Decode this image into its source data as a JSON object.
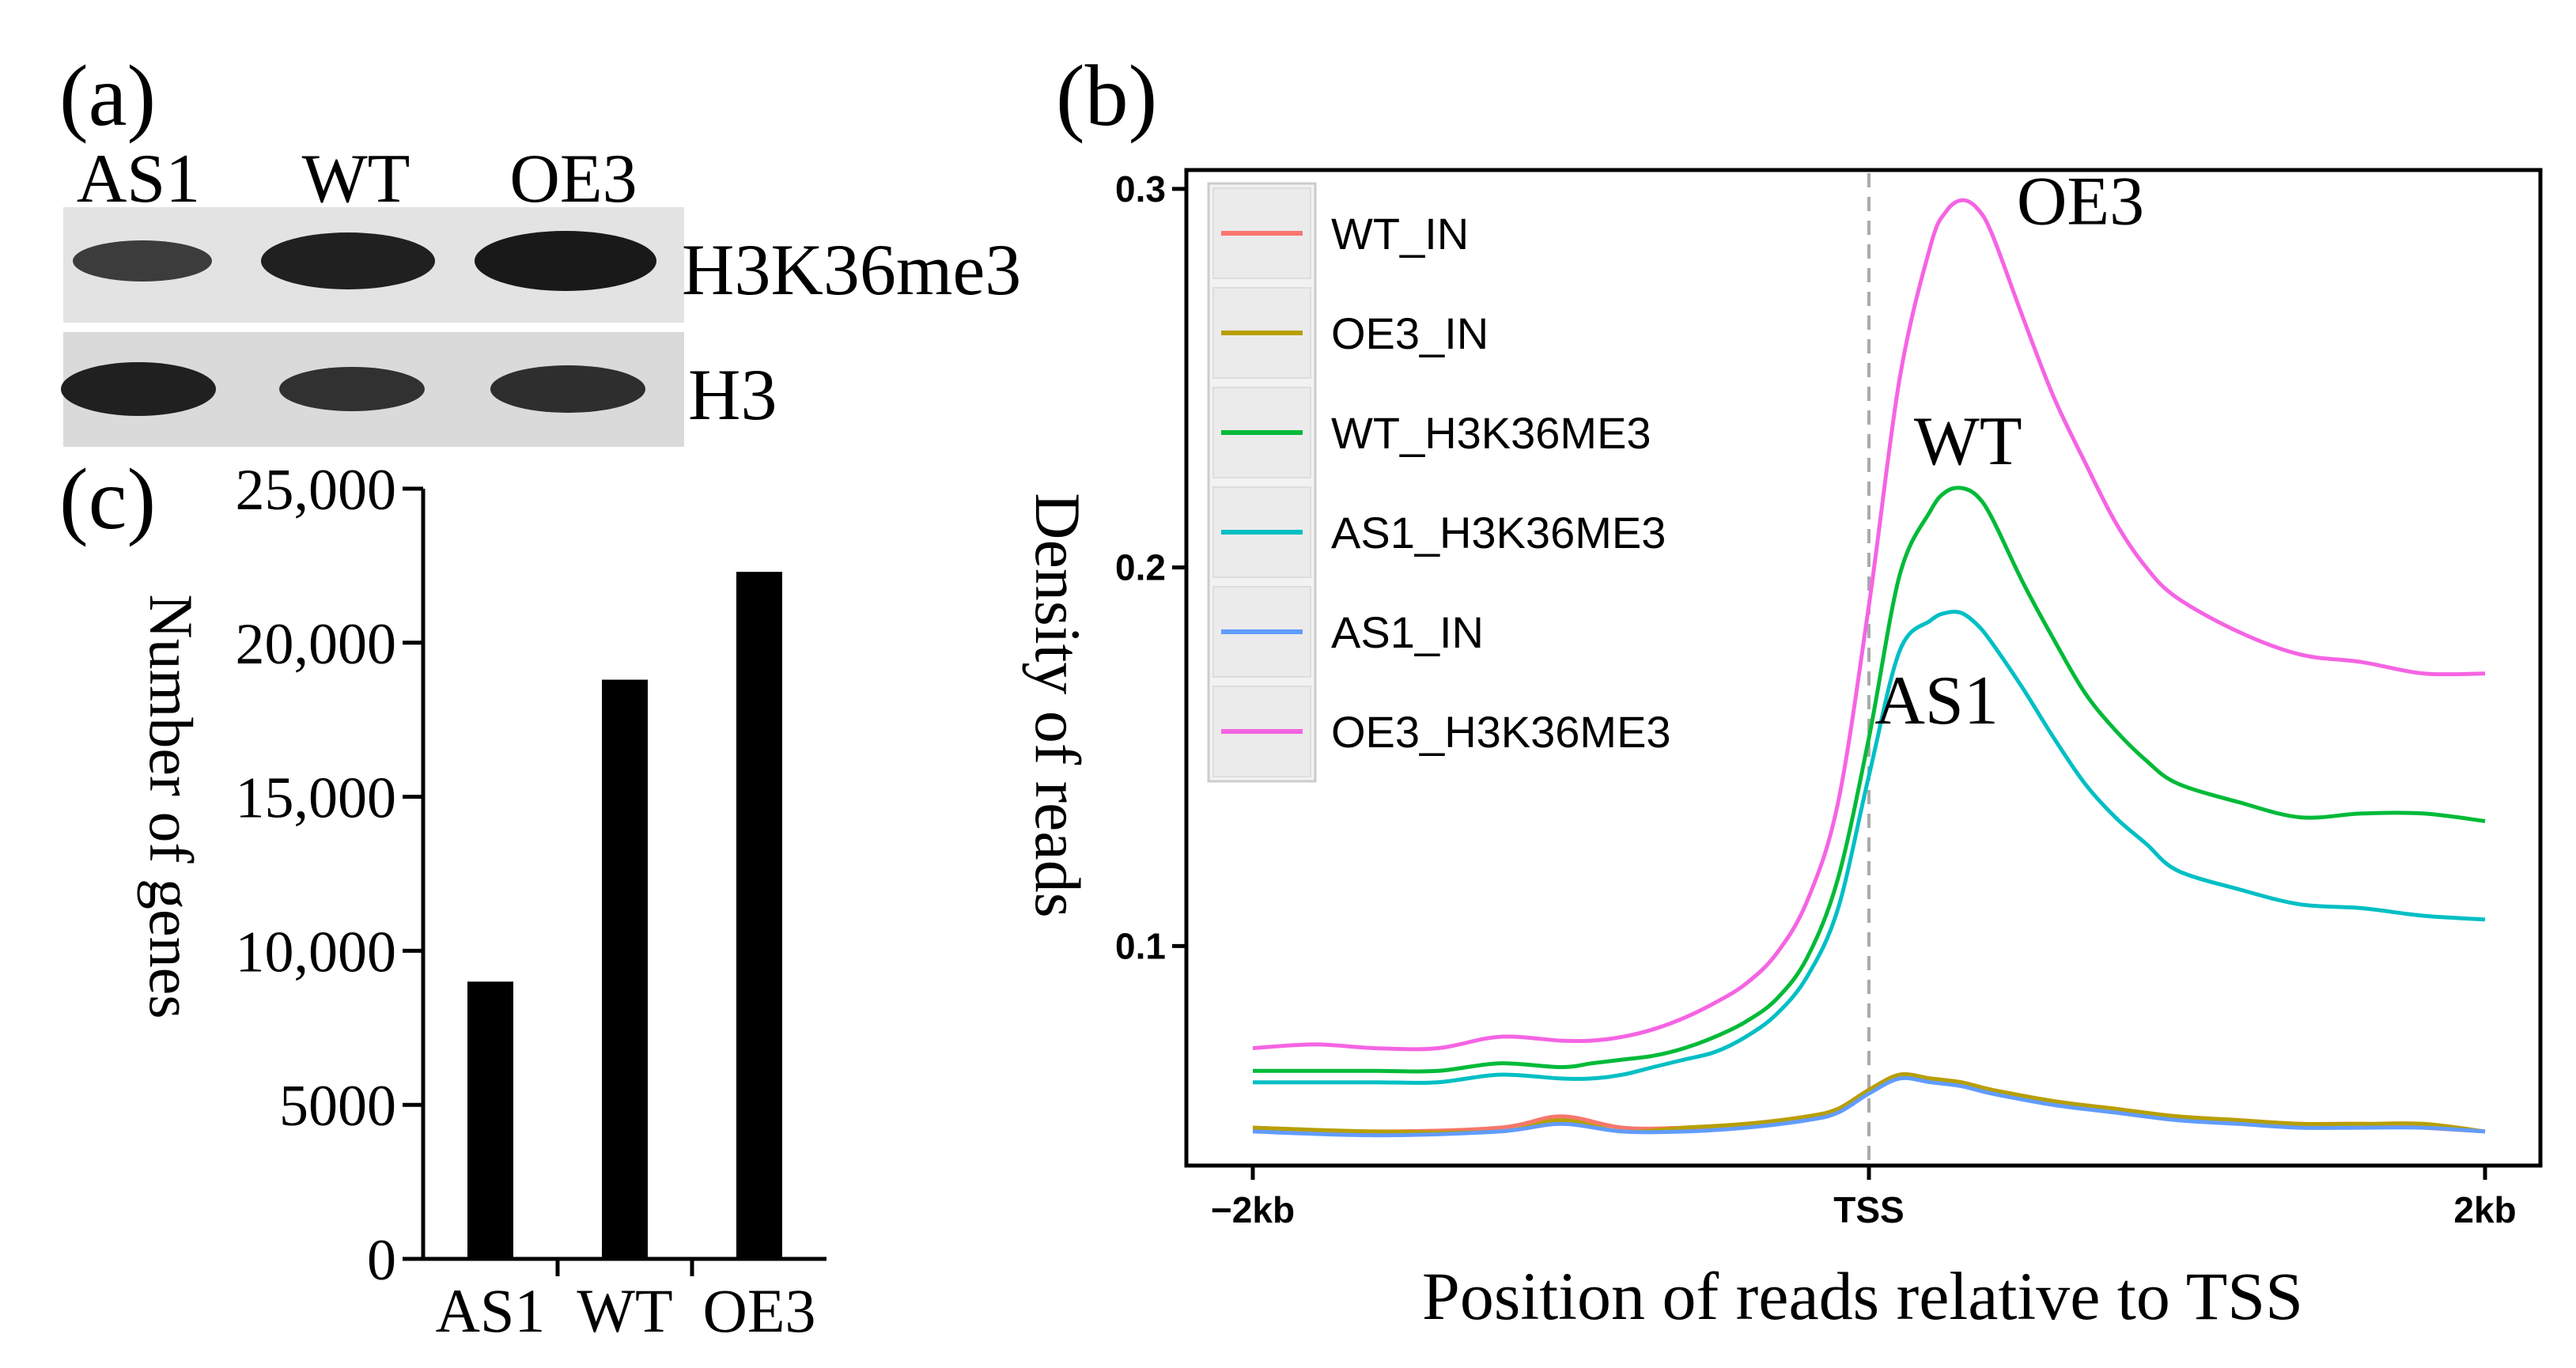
{
  "panels": {
    "a": {
      "label": "(a)",
      "lanes": [
        "AS1",
        "WT",
        "OE3"
      ],
      "bands": [
        {
          "name": "H3K36me3",
          "intensity": [
            0.55,
            0.85,
            0.9
          ]
        },
        {
          "name": "H3",
          "intensity": [
            0.85,
            0.65,
            0.7
          ]
        }
      ]
    },
    "b": {
      "label": "(b)"
    },
    "c": {
      "label": "(c)"
    }
  },
  "colors": {
    "black": "#000000",
    "WT_IN": "#F8766D",
    "OE3_IN": "#B79F00",
    "WT_H3K36ME3": "#00BA38",
    "AS1_H3K36ME3": "#00BFC4",
    "AS1_IN": "#619CFF",
    "OE3_H3K36ME3": "#F564E3",
    "legend_bg": "#f2f2f2",
    "legend_key_bg": "#ebebeb",
    "tss_line": "#aaaaaa"
  },
  "chart_data": [
    {
      "id": "c",
      "type": "bar",
      "title": "",
      "categories": [
        "AS1",
        "WT",
        "OE3"
      ],
      "values": [
        9000,
        18800,
        22300
      ],
      "xlabel": "",
      "ylabel": "Number of genes",
      "ylim": [
        0,
        25000
      ],
      "yticks": [
        0,
        5000,
        10000,
        15000,
        20000,
        25000
      ],
      "ytick_labels": [
        "0",
        "5000",
        "10,000",
        "15,000",
        "20,000",
        "25,000"
      ]
    },
    {
      "id": "b",
      "type": "line",
      "title": "",
      "xlabel": "Position of reads relative to TSS",
      "ylabel": "Density of reads",
      "xlim": [
        -2000,
        2000
      ],
      "ylim": [
        0.042,
        0.305
      ],
      "xticks": [
        -2000,
        0,
        2000
      ],
      "xtick_labels": [
        "−2kb",
        "TSS",
        "2kb"
      ],
      "yticks": [
        0.1,
        0.2,
        0.3
      ],
      "ytick_labels": [
        "0.1",
        "0.2",
        "0.3"
      ],
      "vline": 0,
      "legend": {
        "position": "top-left",
        "entries": [
          "WT_IN",
          "OE3_IN",
          "WT_H3K36ME3",
          "AS1_H3K36ME3",
          "AS1_IN",
          "OE3_H3K36ME3"
        ]
      },
      "annotations": [
        {
          "text": "OE3",
          "series": "OE3_H3K36ME3"
        },
        {
          "text": "WT",
          "series": "WT_H3K36ME3"
        },
        {
          "text": "AS1",
          "series": "AS1_H3K36ME3"
        }
      ],
      "series": [
        {
          "name": "OE3_H3K36ME3",
          "x": [
            -2000,
            -1800,
            -1600,
            -1400,
            -1200,
            -1000,
            -900,
            -800,
            -700,
            -600,
            -500,
            -400,
            -300,
            -200,
            -100,
            0,
            100,
            200,
            250,
            300,
            350,
            400,
            500,
            600,
            700,
            800,
            900,
            1000,
            1200,
            1400,
            1600,
            1800,
            2000
          ],
          "y": [
            0.073,
            0.074,
            0.073,
            0.073,
            0.076,
            0.075,
            0.075,
            0.076,
            0.078,
            0.081,
            0.085,
            0.09,
            0.098,
            0.112,
            0.138,
            0.19,
            0.25,
            0.285,
            0.294,
            0.297,
            0.295,
            0.288,
            0.266,
            0.245,
            0.228,
            0.212,
            0.2,
            0.192,
            0.183,
            0.177,
            0.175,
            0.172,
            0.172
          ]
        },
        {
          "name": "WT_H3K36ME3",
          "x": [
            -2000,
            -1800,
            -1600,
            -1400,
            -1200,
            -1000,
            -900,
            -800,
            -700,
            -600,
            -500,
            -400,
            -300,
            -200,
            -100,
            0,
            100,
            200,
            250,
            300,
            350,
            400,
            500,
            600,
            700,
            800,
            900,
            1000,
            1200,
            1400,
            1600,
            1800,
            2000
          ],
          "y": [
            0.067,
            0.067,
            0.067,
            0.067,
            0.069,
            0.068,
            0.069,
            0.07,
            0.071,
            0.073,
            0.076,
            0.08,
            0.086,
            0.097,
            0.118,
            0.155,
            0.198,
            0.215,
            0.22,
            0.221,
            0.219,
            0.213,
            0.196,
            0.181,
            0.167,
            0.157,
            0.149,
            0.143,
            0.138,
            0.134,
            0.135,
            0.135,
            0.133
          ]
        },
        {
          "name": "AS1_H3K36ME3",
          "x": [
            -2000,
            -1800,
            -1600,
            -1400,
            -1200,
            -1000,
            -900,
            -800,
            -700,
            -600,
            -500,
            -400,
            -300,
            -200,
            -100,
            0,
            100,
            200,
            250,
            300,
            350,
            400,
            500,
            600,
            700,
            800,
            900,
            1000,
            1200,
            1400,
            1600,
            1800,
            2000
          ],
          "y": [
            0.064,
            0.064,
            0.064,
            0.064,
            0.066,
            0.065,
            0.065,
            0.066,
            0.068,
            0.07,
            0.072,
            0.076,
            0.082,
            0.092,
            0.11,
            0.145,
            0.178,
            0.186,
            0.188,
            0.188,
            0.185,
            0.18,
            0.168,
            0.155,
            0.143,
            0.134,
            0.127,
            0.12,
            0.115,
            0.111,
            0.11,
            0.108,
            0.107
          ]
        },
        {
          "name": "WT_IN",
          "x": [
            -2000,
            -1600,
            -1200,
            -1000,
            -800,
            -600,
            -400,
            -200,
            -100,
            0,
            100,
            200,
            300,
            400,
            600,
            800,
            1000,
            1200,
            1400,
            1600,
            1800,
            2000
          ],
          "y": [
            0.052,
            0.051,
            0.052,
            0.055,
            0.052,
            0.052,
            0.053,
            0.055,
            0.057,
            0.062,
            0.066,
            0.065,
            0.064,
            0.062,
            0.059,
            0.057,
            0.055,
            0.054,
            0.053,
            0.053,
            0.052,
            0.051
          ]
        },
        {
          "name": "OE3_IN",
          "x": [
            -2000,
            -1600,
            -1200,
            -1000,
            -800,
            -600,
            -400,
            -200,
            -100,
            0,
            100,
            200,
            300,
            400,
            600,
            800,
            1000,
            1200,
            1400,
            1600,
            1800,
            2000
          ],
          "y": [
            0.052,
            0.051,
            0.051,
            0.054,
            0.051,
            0.052,
            0.053,
            0.055,
            0.057,
            0.062,
            0.066,
            0.065,
            0.064,
            0.062,
            0.059,
            0.057,
            0.055,
            0.054,
            0.053,
            0.053,
            0.053,
            0.051
          ]
        },
        {
          "name": "AS1_IN",
          "x": [
            -2000,
            -1600,
            -1200,
            -1000,
            -800,
            -600,
            -400,
            -200,
            -100,
            0,
            100,
            200,
            300,
            400,
            600,
            800,
            1000,
            1200,
            1400,
            1600,
            1800,
            2000
          ],
          "y": [
            0.051,
            0.05,
            0.051,
            0.053,
            0.051,
            0.051,
            0.052,
            0.054,
            0.056,
            0.061,
            0.065,
            0.064,
            0.063,
            0.061,
            0.058,
            0.056,
            0.054,
            0.053,
            0.052,
            0.052,
            0.052,
            0.051
          ]
        }
      ]
    }
  ]
}
